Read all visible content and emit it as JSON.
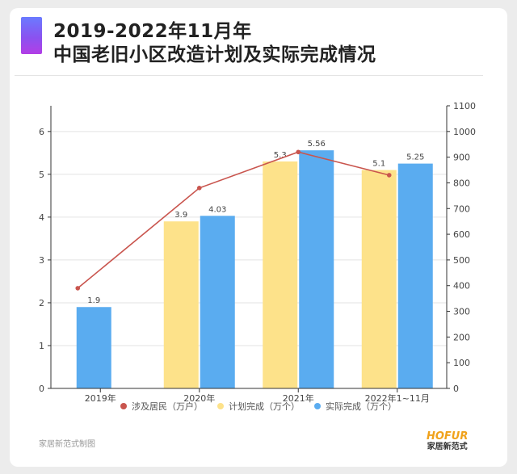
{
  "header": {
    "title_line1": "2019-2022年11月年",
    "title_line2": "中国老旧小区改造计划及实际完成情况"
  },
  "colors": {
    "residents": "#c9554e",
    "planned": "#fde28a",
    "actual": "#5aacf0",
    "axis": "#333333",
    "grid": "#e3e3e3"
  },
  "chart_data": {
    "type": "bar",
    "categories": [
      "2019年",
      "2020年",
      "2021年",
      "2022年1~11月"
    ],
    "series": [
      {
        "name": "计划完成（万个）",
        "kind": "bar",
        "axis": "left",
        "values": [
          null,
          3.9,
          5.3,
          5.1
        ]
      },
      {
        "name": "实际完成（万个）",
        "kind": "bar",
        "axis": "left",
        "values": [
          1.9,
          4.03,
          5.56,
          5.25
        ]
      },
      {
        "name": "涉及居民（万户）",
        "kind": "line",
        "axis": "right",
        "values": [
          390,
          780,
          920,
          830
        ]
      }
    ],
    "data_labels": {
      "planned": [
        "",
        "3.9",
        "5.3",
        "5.1"
      ],
      "actual": [
        "1.9",
        "4.03",
        "5.56",
        "5.25"
      ]
    },
    "y_left": {
      "min": 0,
      "max": 6.6,
      "ticks": [
        "0",
        "1",
        "2",
        "3",
        "4",
        "5",
        "6"
      ]
    },
    "y_right": {
      "min": 0,
      "max": 1100,
      "ticks": [
        "0",
        "100",
        "200",
        "300",
        "400",
        "500",
        "600",
        "700",
        "800",
        "900",
        "1000",
        "1100"
      ]
    },
    "legend": [
      "涉及居民（万户）",
      "计划完成（万个）",
      "实际完成（万个）"
    ],
    "legend_position": "bottom"
  },
  "footer": {
    "note": "家居新范式制图",
    "brand_name": "HOFUR",
    "brand_sub": "家居新范式"
  }
}
